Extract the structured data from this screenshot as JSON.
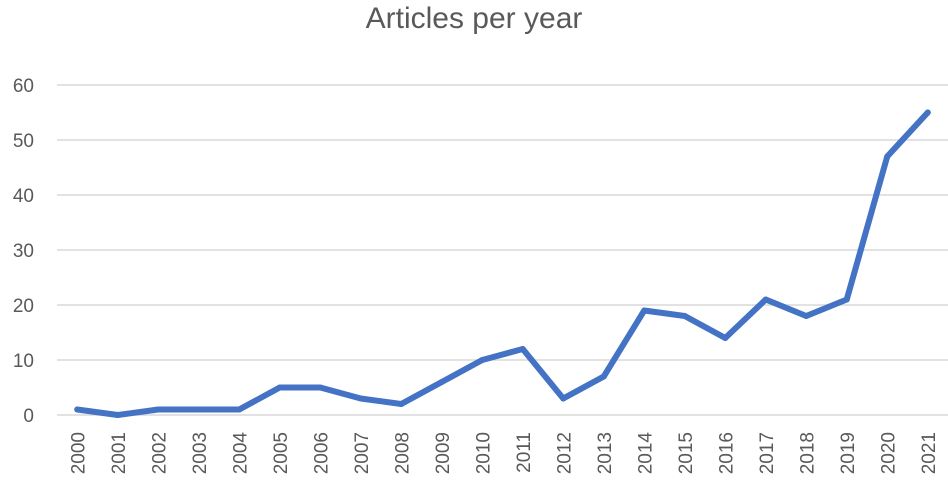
{
  "chart_data": {
    "type": "line",
    "title": "Articles per year",
    "xlabel": "",
    "ylabel": "",
    "categories": [
      "2000",
      "2001",
      "2002",
      "2003",
      "2004",
      "2005",
      "2006",
      "2007",
      "2008",
      "2009",
      "2010",
      "2011",
      "2012",
      "2013",
      "2014",
      "2015",
      "2016",
      "2017",
      "2018",
      "2019",
      "2020",
      "2021"
    ],
    "series": [
      {
        "values": [
          1,
          0,
          1,
          1,
          1,
          5,
          5,
          3,
          2,
          6,
          10,
          12,
          3,
          7,
          19,
          18,
          14,
          21,
          18,
          21,
          47,
          55
        ]
      }
    ],
    "ylim": [
      0,
      60
    ],
    "yticks": [
      "0",
      "10",
      "20",
      "30",
      "40",
      "50",
      "60"
    ],
    "grid": true,
    "legend": "none",
    "colors": {
      "line": "#4472C4",
      "grid": "#D9D9D9",
      "text": "#595959"
    }
  }
}
